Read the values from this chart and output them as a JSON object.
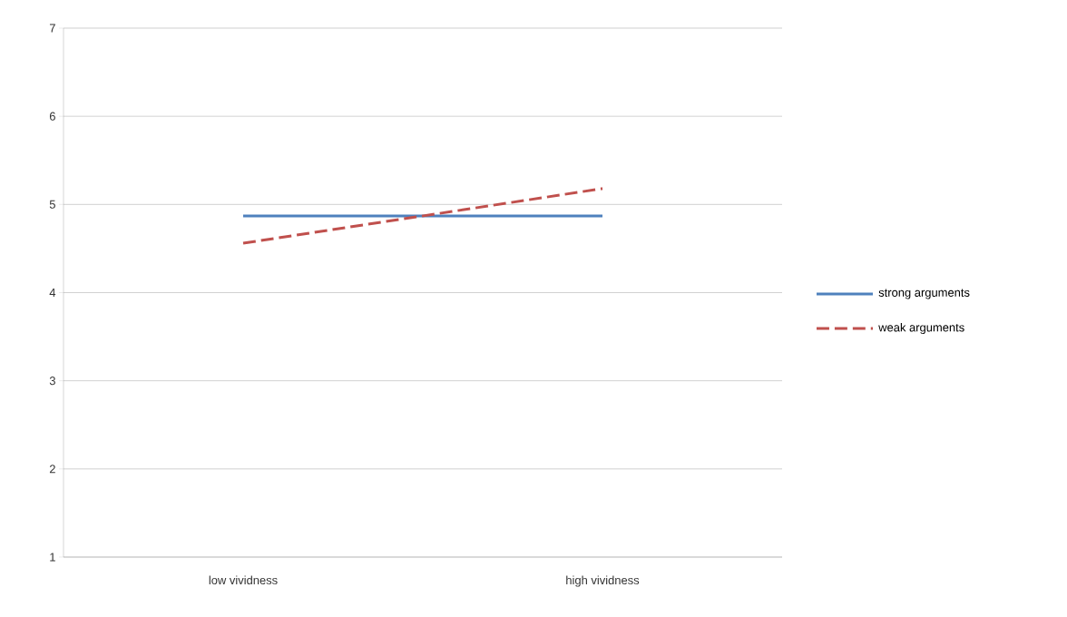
{
  "chart_data": {
    "type": "line",
    "categories": [
      "low vividness",
      "high vividness"
    ],
    "series": [
      {
        "name": "strong arguments",
        "color": "#4f81bd",
        "line_style": "solid",
        "values": [
          4.87,
          4.87
        ]
      },
      {
        "name": "weak arguments",
        "color": "#c0504d",
        "line_style": "dashed",
        "values": [
          4.56,
          5.18
        ]
      }
    ],
    "ylim": [
      1,
      7
    ],
    "yticks": [
      1,
      2,
      3,
      4,
      5,
      6,
      7
    ],
    "grid": "y",
    "legend": "right",
    "marker": "none"
  }
}
